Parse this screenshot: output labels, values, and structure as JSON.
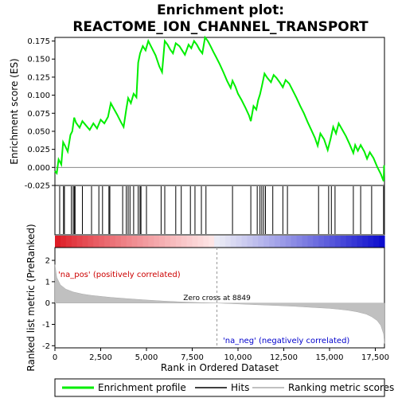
{
  "chart_data": {
    "type": "line",
    "title_line1": "Enrichment plot:",
    "title_line2": "REACTOME_ION_CHANNEL_TRANSPORT",
    "xlabel": "Rank in Ordered Dataset",
    "ylabel_top": "Enrichment score (ES)",
    "ylabel_bottom": "Ranked list metric (PreRanked)",
    "xlim": [
      0,
      18000
    ],
    "x_ticks": [
      0,
      2500,
      5000,
      7500,
      10000,
      12500,
      15000,
      17500
    ],
    "x_tick_labels": [
      "0",
      "2,500",
      "5,000",
      "7,500",
      "10,000",
      "12,500",
      "15,000",
      "17,500"
    ],
    "es_ylim": [
      -0.025,
      0.18
    ],
    "es_ticks": [
      -0.025,
      0.0,
      0.025,
      0.05,
      0.075,
      0.1,
      0.125,
      0.15,
      0.175
    ],
    "es_tick_labels": [
      "-0.025",
      "0.000",
      "0.025",
      "0.050",
      "0.075",
      "0.100",
      "0.125",
      "0.150",
      "0.175"
    ],
    "metric_ylim": [
      -2.1,
      2.6
    ],
    "metric_ticks": [
      -2,
      -1,
      0,
      1,
      2
    ],
    "metric_tick_labels": [
      "-2",
      "-1",
      "0",
      "1",
      "2"
    ],
    "zero_cross_rank": 8849,
    "zero_cross_label": "Zero cross at 8849",
    "pos_label": "'na_pos' (positively correlated)",
    "neg_label": "'na_neg' (negatively correlated)",
    "series": [
      {
        "name": "Enrichment profile",
        "color": "#00ee00",
        "x": [
          0,
          100,
          200,
          350,
          450,
          550,
          700,
          850,
          950,
          1050,
          1150,
          1350,
          1500,
          1700,
          1900,
          2100,
          2300,
          2500,
          2700,
          2900,
          3050,
          3200,
          3400,
          3600,
          3750,
          3900,
          4000,
          4150,
          4300,
          4450,
          4550,
          4650,
          4800,
          4950,
          5100,
          5300,
          5500,
          5700,
          5850,
          6000,
          6150,
          6300,
          6450,
          6600,
          6800,
          6950,
          7100,
          7300,
          7450,
          7600,
          7750,
          7900,
          8050,
          8200,
          8350,
          8500,
          8650,
          8800,
          9000,
          9200,
          9400,
          9600,
          9700,
          9850,
          10000,
          10200,
          10400,
          10600,
          10700,
          10850,
          11000,
          11100,
          11200,
          11300,
          11450,
          11600,
          11800,
          11950,
          12100,
          12300,
          12450,
          12600,
          12800,
          13000,
          13200,
          13400,
          13600,
          13800,
          14000,
          14200,
          14350,
          14500,
          14700,
          14900,
          15050,
          15200,
          15350,
          15500,
          15700,
          15900,
          16100,
          16300,
          16400,
          16550,
          16700,
          16900,
          17050,
          17200,
          17400,
          17600,
          17800,
          17950,
          17980
        ],
        "y": [
          -0.005,
          -0.008,
          0.011,
          0.004,
          0.035,
          0.03,
          0.022,
          0.045,
          0.05,
          0.069,
          0.062,
          0.055,
          0.064,
          0.058,
          0.052,
          0.061,
          0.054,
          0.066,
          0.061,
          0.07,
          0.089,
          0.082,
          0.073,
          0.063,
          0.056,
          0.081,
          0.096,
          0.089,
          0.102,
          0.097,
          0.145,
          0.158,
          0.168,
          0.162,
          0.175,
          0.165,
          0.155,
          0.14,
          0.132,
          0.175,
          0.17,
          0.163,
          0.158,
          0.172,
          0.168,
          0.162,
          0.156,
          0.17,
          0.165,
          0.175,
          0.17,
          0.163,
          0.158,
          0.18,
          0.175,
          0.168,
          0.16,
          0.153,
          0.143,
          0.132,
          0.12,
          0.11,
          0.12,
          0.112,
          0.102,
          0.093,
          0.083,
          0.072,
          0.064,
          0.085,
          0.08,
          0.093,
          0.101,
          0.112,
          0.13,
          0.124,
          0.118,
          0.128,
          0.124,
          0.117,
          0.111,
          0.121,
          0.116,
          0.106,
          0.096,
          0.085,
          0.075,
          0.063,
          0.052,
          0.041,
          0.03,
          0.047,
          0.039,
          0.024,
          0.039,
          0.056,
          0.047,
          0.061,
          0.052,
          0.043,
          0.032,
          0.02,
          0.031,
          0.023,
          0.031,
          0.022,
          0.012,
          0.021,
          0.013,
          0.001,
          -0.009,
          -0.019,
          0.003
        ]
      },
      {
        "name": "Hits",
        "color": "#000000",
        "x": [
          260,
          470,
          520,
          900,
          1000,
          1060,
          1100,
          1500,
          2000,
          2400,
          2600,
          2950,
          3000,
          3700,
          3900,
          4000,
          4100,
          4300,
          4550,
          4650,
          4700,
          5000,
          5800,
          6000,
          6600,
          6900,
          7400,
          7650,
          8000,
          8250,
          9700,
          10700,
          11050,
          11200,
          11300,
          11400,
          11500,
          11900,
          12450,
          12700,
          14400,
          14950,
          15100,
          15300,
          16300,
          16700,
          17300,
          17950
        ]
      },
      {
        "name": "Ranking metric scores",
        "color": "#c0c0c0",
        "x": [
          0,
          100,
          300,
          600,
          1000,
          1500,
          2000,
          3000,
          4000,
          5000,
          6000,
          7000,
          8000,
          8849,
          10000,
          11000,
          12000,
          13000,
          14000,
          15000,
          15500,
          16000,
          16500,
          17000,
          17300,
          17600,
          17800,
          17950,
          18000
        ],
        "y": [
          1.8,
          1.2,
          0.85,
          0.65,
          0.52,
          0.42,
          0.36,
          0.27,
          0.2,
          0.14,
          0.09,
          0.05,
          0.02,
          0.0,
          -0.04,
          -0.08,
          -0.11,
          -0.15,
          -0.2,
          -0.25,
          -0.29,
          -0.34,
          -0.41,
          -0.52,
          -0.64,
          -0.82,
          -1.05,
          -1.45,
          -1.9
        ]
      }
    ],
    "legend": [
      "Enrichment profile",
      "Hits",
      "Ranking metric scores"
    ],
    "legend_placement": "bottom"
  }
}
